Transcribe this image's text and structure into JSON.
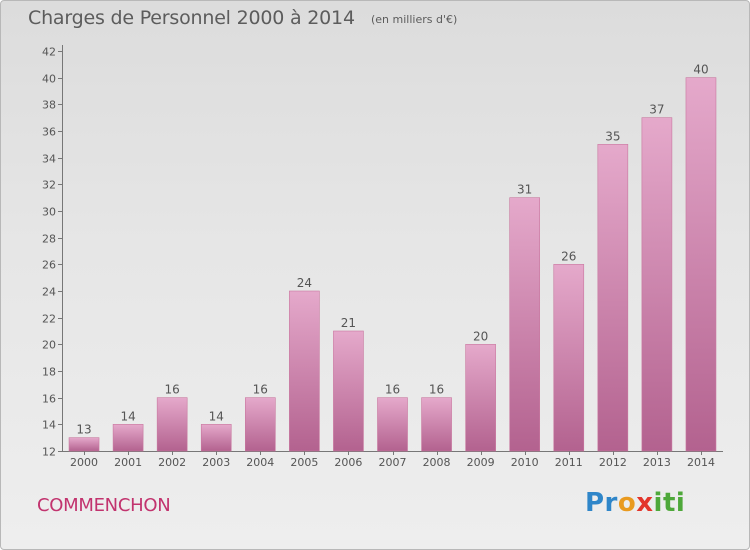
{
  "header": {
    "title": "Charges de Personnel 2000 à 2014",
    "subtitle": "(en milliers d'€)"
  },
  "footer": {
    "commune": "COMMENCHON",
    "logo": [
      "Pr",
      "o",
      "x",
      "iti"
    ]
  },
  "colors": {
    "bar_fill_top": "#e5a9cb",
    "bar_fill_bottom": "#b3628f",
    "commune_text": "#c2336e"
  },
  "chart_data": {
    "type": "bar",
    "categories": [
      "2000",
      "2001",
      "2002",
      "2003",
      "2004",
      "2005",
      "2006",
      "2007",
      "2008",
      "2009",
      "2010",
      "2011",
      "2012",
      "2013",
      "2014"
    ],
    "values": [
      13,
      14,
      16,
      14,
      16,
      24,
      21,
      16,
      16,
      20,
      31,
      26,
      35,
      37,
      40
    ],
    "title": "Charges de Personnel 2000 à 2014",
    "subtitle": "(en milliers d'€)",
    "xlabel": "",
    "ylabel": "",
    "ylim": [
      12,
      42
    ],
    "yticks": [
      12,
      14,
      16,
      18,
      20,
      22,
      24,
      26,
      28,
      30,
      32,
      34,
      36,
      38,
      40,
      42
    ],
    "grid": false,
    "data_labels": true
  }
}
